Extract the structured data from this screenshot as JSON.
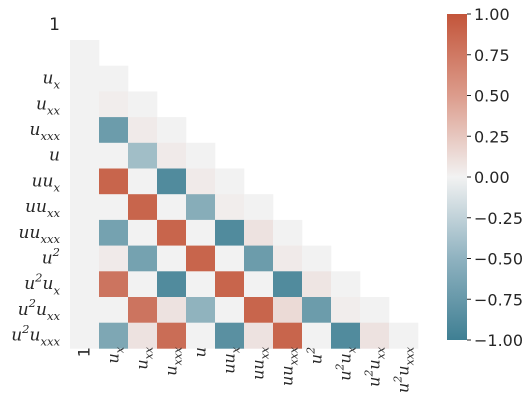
{
  "chart_data": {
    "type": "heatmap",
    "title": "",
    "xlabel": "",
    "ylabel": "",
    "mask": "lower-triangle-including-diagonal",
    "labels": [
      {
        "base": "1",
        "sup": "",
        "sub": ""
      },
      {
        "base": "u",
        "sup": "",
        "sub": "x"
      },
      {
        "base": "u",
        "sup": "",
        "sub": "xx"
      },
      {
        "base": "u",
        "sup": "",
        "sub": "xxx"
      },
      {
        "base": "u",
        "sup": "",
        "sub": ""
      },
      {
        "base": "uu",
        "sup": "",
        "sub": "x"
      },
      {
        "base": "uu",
        "sup": "",
        "sub": "xx"
      },
      {
        "base": "uu",
        "sup": "",
        "sub": "xxx"
      },
      {
        "base": "u",
        "sup": "2",
        "sub": ""
      },
      {
        "base": "u",
        "sup": "2",
        "sub": "x",
        "mid": "u"
      },
      {
        "base": "u",
        "sup": "2",
        "sub": "xx",
        "mid": "u"
      },
      {
        "base": "u",
        "sup": "2",
        "sub": "xxx",
        "mid": "u"
      }
    ],
    "matrix": [
      [
        0.0
      ],
      [
        0.0,
        0.0
      ],
      [
        0.0,
        0.03,
        0.0
      ],
      [
        0.0,
        -0.75,
        0.05,
        0.0
      ],
      [
        0.0,
        0.0,
        -0.45,
        0.05,
        0.0
      ],
      [
        0.0,
        0.9,
        0.0,
        -0.9,
        0.05,
        0.0
      ],
      [
        0.0,
        0.0,
        0.9,
        0.0,
        -0.6,
        0.03,
        0.0
      ],
      [
        0.0,
        -0.7,
        0.0,
        0.9,
        0.0,
        -0.9,
        0.1,
        0.0
      ],
      [
        0.0,
        0.05,
        -0.7,
        0.0,
        0.9,
        0.0,
        -0.75,
        0.05,
        0.0
      ],
      [
        0.0,
        0.8,
        0.0,
        -0.9,
        0.0,
        0.9,
        0.0,
        -0.9,
        0.08,
        0.0
      ],
      [
        0.0,
        0.0,
        0.8,
        0.1,
        -0.55,
        0.0,
        0.9,
        0.15,
        -0.75,
        0.03,
        0.0
      ],
      [
        0.0,
        -0.65,
        0.1,
        0.85,
        0.0,
        -0.85,
        0.1,
        0.9,
        0.0,
        -0.9,
        0.1,
        0.0
      ]
    ],
    "colorbar": {
      "range": [
        -1.0,
        1.0
      ],
      "ticks": [
        "1.00",
        "0.75",
        "0.50",
        "0.25",
        "0.00",
        "−0.25",
        "−0.50",
        "−0.75",
        "−1.00"
      ],
      "tick_values": [
        1.0,
        0.75,
        0.5,
        0.25,
        0.0,
        -0.25,
        -0.5,
        -0.75,
        -1.0
      ],
      "colors": {
        "negative": "#3f7f93",
        "center": "#f2f2f2",
        "positive": "#c3553a"
      }
    }
  }
}
